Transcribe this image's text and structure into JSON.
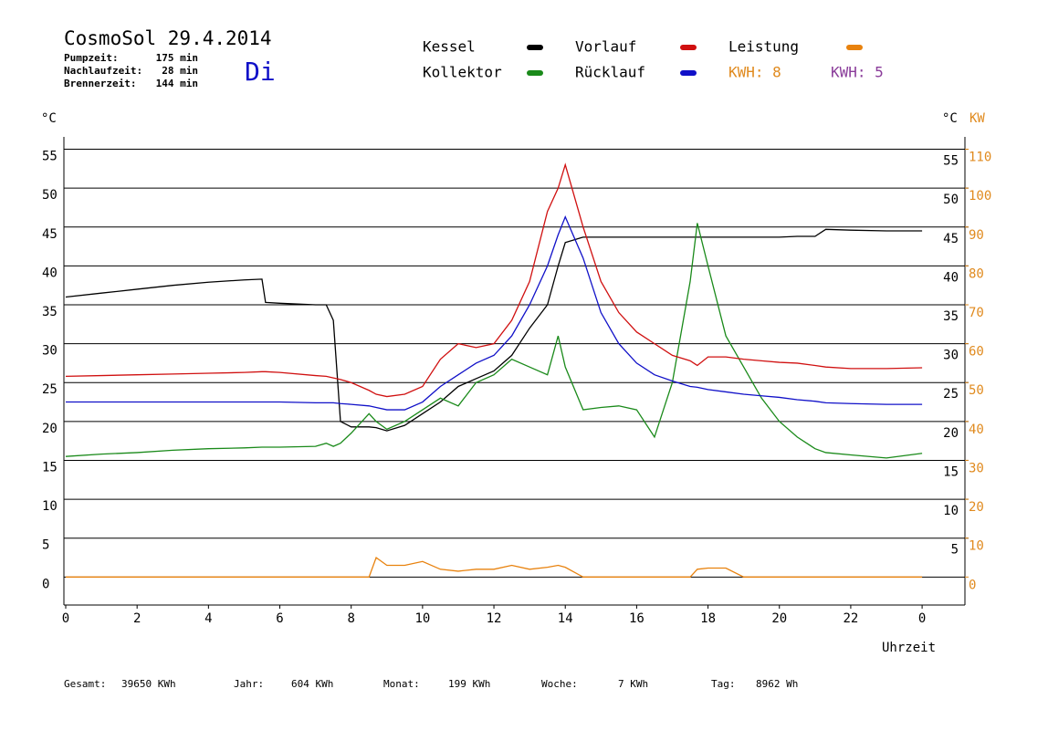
{
  "chart_data": {
    "type": "line",
    "title": "CosmoSol 29.4.2014",
    "weekday": "Di",
    "stats": [
      {
        "label": "Pumpzeit:",
        "value": "175 min"
      },
      {
        "label": "Nachlaufzeit:",
        "value": "28 min"
      },
      {
        "label": "Brennerzeit:",
        "value": "144 min"
      }
    ],
    "kwh_labels": [
      {
        "text": "KWH: 8",
        "color": "#e08a1e"
      },
      {
        "text": "KWH: 5",
        "color": "#8a3c9a"
      }
    ],
    "y_label": "°C",
    "y2_label": "°C",
    "y3_label": "KW",
    "x_label": "Uhrzeit",
    "footer": [
      {
        "label": "Gesamt:",
        "value": "39650 KWh"
      },
      {
        "label": "Jahr:",
        "value": "604 KWh"
      },
      {
        "label": "Monat:",
        "value": "199 KWh"
      },
      {
        "label": "Woche:",
        "value": "7 KWh"
      },
      {
        "label": "Tag:",
        "value": "8962 Wh"
      }
    ],
    "x": [
      0,
      1,
      2,
      3,
      4,
      5,
      5.5,
      5.6,
      6,
      7,
      7.3,
      7.5,
      7.7,
      8,
      8.5,
      8.7,
      9,
      9.5,
      10,
      10.5,
      11,
      11.5,
      12,
      12.5,
      13,
      13.5,
      13.8,
      14,
      14.5,
      15,
      15.5,
      16,
      16.5,
      17,
      17.5,
      17.7,
      18,
      18.5,
      19,
      19.5,
      20,
      20.5,
      21,
      21.3,
      22,
      23,
      24
    ],
    "xlim": [
      0,
      25.2
    ],
    "xticks": [
      0,
      2,
      4,
      6,
      8,
      10,
      12,
      14,
      16,
      18,
      20,
      22,
      {
        "value": 24,
        "label": "0"
      }
    ],
    "ylim": [
      -3.6,
      56
    ],
    "yticks": [
      0,
      5,
      10,
      15,
      20,
      25,
      30,
      35,
      40,
      45,
      50,
      55
    ],
    "yticks_right": [
      5,
      10,
      15,
      20,
      25,
      30,
      35,
      40,
      45,
      50,
      55
    ],
    "y2lim": [
      -7.2,
      112
    ],
    "y2ticks": [
      0,
      10,
      20,
      30,
      40,
      50,
      60,
      70,
      80,
      90,
      100,
      110
    ],
    "grid": true,
    "series": [
      {
        "name": "Kessel",
        "color": "#000000",
        "values": [
          36.0,
          36.5,
          37.0,
          37.5,
          37.9,
          38.2,
          38.3,
          35.3,
          35.2,
          35.0,
          35.0,
          33.0,
          20.0,
          19.3,
          19.3,
          19.2,
          18.8,
          19.5,
          21.0,
          22.5,
          24.5,
          25.5,
          26.5,
          28.5,
          32.0,
          35.0,
          40.0,
          43.0,
          43.7,
          43.7,
          43.7,
          43.7,
          43.7,
          43.7,
          43.7,
          43.7,
          43.7,
          43.7,
          43.7,
          43.7,
          43.7,
          43.8,
          43.8,
          44.7,
          44.6,
          44.5,
          44.5
        ]
      },
      {
        "name": "Kollektor",
        "color": "#1a8a1a",
        "values": [
          15.5,
          15.8,
          16.0,
          16.3,
          16.5,
          16.6,
          16.7,
          16.7,
          16.7,
          16.8,
          17.2,
          16.8,
          17.2,
          18.5,
          21.0,
          20.0,
          19.0,
          20.0,
          21.5,
          23.0,
          22.0,
          25.0,
          26.0,
          28.0,
          27.0,
          26.0,
          31.0,
          27.0,
          21.5,
          21.8,
          22.0,
          21.5,
          18.0,
          25.0,
          38.0,
          45.5,
          40.0,
          31.0,
          27.0,
          23.0,
          20.0,
          18.0,
          16.5,
          16.0,
          15.7,
          15.3,
          15.9
        ]
      },
      {
        "name": "Vorlauf",
        "color": "#d01010",
        "values": [
          25.8,
          25.9,
          26.0,
          26.1,
          26.2,
          26.3,
          26.4,
          26.4,
          26.3,
          25.9,
          25.8,
          25.6,
          25.4,
          25.0,
          24.0,
          23.5,
          23.2,
          23.5,
          24.5,
          28.0,
          30.0,
          29.5,
          30.0,
          33.0,
          38.0,
          47.0,
          50.0,
          53.0,
          45.0,
          38.0,
          34.0,
          31.5,
          30.0,
          28.5,
          27.8,
          27.2,
          28.3,
          28.3,
          28.0,
          27.8,
          27.6,
          27.5,
          27.2,
          27.0,
          26.8,
          26.8,
          26.9
        ]
      },
      {
        "name": "Rücklauf",
        "color": "#1010c8",
        "values": [
          22.5,
          22.5,
          22.5,
          22.5,
          22.5,
          22.5,
          22.5,
          22.5,
          22.5,
          22.4,
          22.4,
          22.4,
          22.3,
          22.2,
          22.0,
          21.8,
          21.5,
          21.5,
          22.5,
          24.5,
          26.0,
          27.5,
          28.5,
          31.0,
          35.0,
          40.0,
          44.0,
          46.3,
          41.0,
          34.0,
          30.0,
          27.5,
          26.0,
          25.2,
          24.5,
          24.4,
          24.1,
          23.8,
          23.5,
          23.3,
          23.1,
          22.8,
          22.6,
          22.4,
          22.3,
          22.2,
          22.2
        ]
      },
      {
        "name": "Leistung",
        "color": "#e8820e",
        "axis": "y2",
        "values": [
          0,
          0,
          0,
          0,
          0,
          0,
          0,
          0,
          0,
          0,
          0,
          0,
          0,
          0,
          0,
          5,
          3,
          3,
          4,
          2,
          1.5,
          2,
          2,
          3,
          2,
          2.5,
          3,
          2.5,
          0,
          0,
          0,
          0,
          0,
          0,
          0,
          2,
          2.3,
          2.3,
          0,
          0,
          0,
          0,
          0,
          0,
          0,
          0,
          0
        ]
      }
    ]
  }
}
